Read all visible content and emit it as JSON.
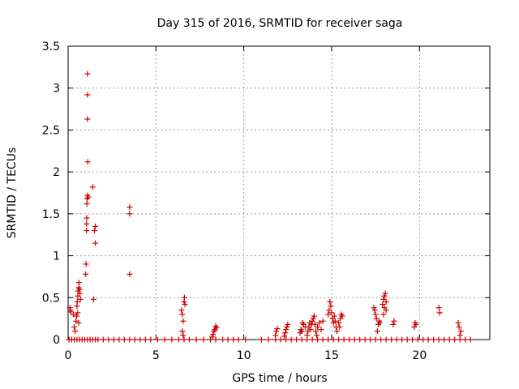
{
  "chart_data": {
    "type": "scatter",
    "title": "Day 315 of 2016, SRMTID for receiver saga",
    "xlabel": "GPS time / hours",
    "ylabel": "SRMTID / TECUs",
    "xlim": [
      0,
      24
    ],
    "ylim": [
      0,
      3.5
    ],
    "xticks": [
      0,
      5,
      10,
      15,
      20
    ],
    "yticks": [
      0,
      0.5,
      1,
      1.5,
      2,
      2.5,
      3,
      3.5
    ],
    "xtick_labels": [
      "0",
      "5",
      "10",
      "15",
      "20"
    ],
    "ytick_labels": [
      "0",
      "0.5",
      "1",
      "1.5",
      "2",
      "2.5",
      "3",
      "3.5"
    ],
    "grid": true,
    "marker": "+",
    "color": "#cc0000",
    "series": [
      {
        "name": "saga",
        "points": [
          [
            0.1,
            0.38
          ],
          [
            0.12,
            0.35
          ],
          [
            0.15,
            0.33
          ],
          [
            0.3,
            0.3
          ],
          [
            0.35,
            0.15
          ],
          [
            0.4,
            0.1
          ],
          [
            0.45,
            0.22
          ],
          [
            0.48,
            0.28
          ],
          [
            0.5,
            0.4
          ],
          [
            0.52,
            0.45
          ],
          [
            0.55,
            0.52
          ],
          [
            0.57,
            0.58
          ],
          [
            0.6,
            0.62
          ],
          [
            0.62,
            0.68
          ],
          [
            0.65,
            0.6
          ],
          [
            0.67,
            0.55
          ],
          [
            0.7,
            0.48
          ],
          [
            0.6,
            0.2
          ],
          [
            0.55,
            0.32
          ],
          [
            1.0,
            0.78
          ],
          [
            1.02,
            0.9
          ],
          [
            1.05,
            1.3
          ],
          [
            1.05,
            1.38
          ],
          [
            1.06,
            1.45
          ],
          [
            1.07,
            1.62
          ],
          [
            1.08,
            1.68
          ],
          [
            1.1,
            1.72
          ],
          [
            1.12,
            2.12
          ],
          [
            1.1,
            2.63
          ],
          [
            1.1,
            2.92
          ],
          [
            1.1,
            3.17
          ],
          [
            1.15,
            1.7
          ],
          [
            1.4,
            1.82
          ],
          [
            1.45,
            0.48
          ],
          [
            1.5,
            1.3
          ],
          [
            1.55,
            1.35
          ],
          [
            1.55,
            1.15
          ],
          [
            3.5,
            1.58
          ],
          [
            3.5,
            1.5
          ],
          [
            3.5,
            0.78
          ],
          [
            6.45,
            0.35
          ],
          [
            6.5,
            0.3
          ],
          [
            6.55,
            0.22
          ],
          [
            6.6,
            0.45
          ],
          [
            6.62,
            0.5
          ],
          [
            6.65,
            0.42
          ],
          [
            6.5,
            0.1
          ],
          [
            6.55,
            0.05
          ],
          [
            8.2,
            0.03
          ],
          [
            8.25,
            0.06
          ],
          [
            8.3,
            0.1
          ],
          [
            8.35,
            0.12
          ],
          [
            8.4,
            0.16
          ],
          [
            8.45,
            0.14
          ],
          [
            11.8,
            0.05
          ],
          [
            11.85,
            0.1
          ],
          [
            11.9,
            0.13
          ],
          [
            12.3,
            0.04
          ],
          [
            12.35,
            0.08
          ],
          [
            12.4,
            0.12
          ],
          [
            12.45,
            0.15
          ],
          [
            12.5,
            0.18
          ],
          [
            13.2,
            0.08
          ],
          [
            13.25,
            0.12
          ],
          [
            13.3,
            0.1
          ],
          [
            13.35,
            0.2
          ],
          [
            13.4,
            0.18
          ],
          [
            13.5,
            0.15
          ],
          [
            13.6,
            0.05
          ],
          [
            13.65,
            0.1
          ],
          [
            13.7,
            0.15
          ],
          [
            13.75,
            0.2
          ],
          [
            13.8,
            0.12
          ],
          [
            13.85,
            0.18
          ],
          [
            13.9,
            0.22
          ],
          [
            13.95,
            0.25
          ],
          [
            14.0,
            0.28
          ],
          [
            14.05,
            0.18
          ],
          [
            14.1,
            0.1
          ],
          [
            14.15,
            0.05
          ],
          [
            14.2,
            0.15
          ],
          [
            14.3,
            0.2
          ],
          [
            14.4,
            0.12
          ],
          [
            14.5,
            0.22
          ],
          [
            14.8,
            0.3
          ],
          [
            14.85,
            0.35
          ],
          [
            14.9,
            0.45
          ],
          [
            14.95,
            0.4
          ],
          [
            15.0,
            0.32
          ],
          [
            15.05,
            0.25
          ],
          [
            15.1,
            0.2
          ],
          [
            15.15,
            0.28
          ],
          [
            15.2,
            0.22
          ],
          [
            15.25,
            0.15
          ],
          [
            15.3,
            0.1
          ],
          [
            15.4,
            0.2
          ],
          [
            15.5,
            0.25
          ],
          [
            15.55,
            0.3
          ],
          [
            15.6,
            0.28
          ],
          [
            15.45,
            0.15
          ],
          [
            17.4,
            0.38
          ],
          [
            17.45,
            0.35
          ],
          [
            17.5,
            0.3
          ],
          [
            17.55,
            0.25
          ],
          [
            17.6,
            0.1
          ],
          [
            17.65,
            0.18
          ],
          [
            17.7,
            0.22
          ],
          [
            17.75,
            0.2
          ],
          [
            17.9,
            0.42
          ],
          [
            17.95,
            0.48
          ],
          [
            18.0,
            0.52
          ],
          [
            18.05,
            0.55
          ],
          [
            18.1,
            0.45
          ],
          [
            18.0,
            0.38
          ],
          [
            18.1,
            0.35
          ],
          [
            17.95,
            0.3
          ],
          [
            18.5,
            0.18
          ],
          [
            18.55,
            0.22
          ],
          [
            19.7,
            0.15
          ],
          [
            19.75,
            0.2
          ],
          [
            19.8,
            0.18
          ],
          [
            21.1,
            0.38
          ],
          [
            21.15,
            0.32
          ],
          [
            22.2,
            0.2
          ],
          [
            22.25,
            0.15
          ],
          [
            22.3,
            0.05
          ],
          [
            22.35,
            0.1
          ],
          [
            0.05,
            0
          ],
          [
            0.2,
            0
          ],
          [
            0.35,
            0
          ],
          [
            0.5,
            0
          ],
          [
            0.65,
            0
          ],
          [
            0.8,
            0
          ],
          [
            0.95,
            0
          ],
          [
            1.1,
            0
          ],
          [
            1.25,
            0
          ],
          [
            1.4,
            0
          ],
          [
            1.55,
            0
          ],
          [
            1.7,
            0
          ],
          [
            2.0,
            0
          ],
          [
            2.3,
            0
          ],
          [
            2.6,
            0
          ],
          [
            2.9,
            0
          ],
          [
            3.2,
            0
          ],
          [
            3.5,
            0
          ],
          [
            3.8,
            0
          ],
          [
            4.1,
            0
          ],
          [
            4.4,
            0
          ],
          [
            4.7,
            0
          ],
          [
            5.1,
            0
          ],
          [
            5.5,
            0
          ],
          [
            5.9,
            0
          ],
          [
            6.3,
            0
          ],
          [
            6.6,
            0
          ],
          [
            6.9,
            0
          ],
          [
            7.3,
            0
          ],
          [
            7.7,
            0
          ],
          [
            8.1,
            0
          ],
          [
            8.4,
            0
          ],
          [
            8.8,
            0
          ],
          [
            9.1,
            0
          ],
          [
            9.4,
            0
          ],
          [
            9.7,
            0
          ],
          [
            10.1,
            0
          ],
          [
            11.0,
            0
          ],
          [
            11.4,
            0
          ],
          [
            11.8,
            0
          ],
          [
            12.1,
            0
          ],
          [
            12.4,
            0
          ],
          [
            12.7,
            0
          ],
          [
            13.0,
            0
          ],
          [
            13.3,
            0
          ],
          [
            13.6,
            0
          ],
          [
            13.9,
            0
          ],
          [
            14.2,
            0
          ],
          [
            14.5,
            0
          ],
          [
            14.8,
            0
          ],
          [
            15.1,
            0
          ],
          [
            15.4,
            0
          ],
          [
            15.7,
            0
          ],
          [
            16.0,
            0
          ],
          [
            16.3,
            0
          ],
          [
            16.6,
            0
          ],
          [
            16.9,
            0
          ],
          [
            17.2,
            0
          ],
          [
            17.5,
            0
          ],
          [
            17.8,
            0
          ],
          [
            18.1,
            0
          ],
          [
            18.4,
            0
          ],
          [
            18.7,
            0
          ],
          [
            19.0,
            0
          ],
          [
            19.3,
            0
          ],
          [
            19.6,
            0
          ],
          [
            19.9,
            0
          ],
          [
            20.2,
            0
          ],
          [
            20.5,
            0
          ],
          [
            20.8,
            0
          ],
          [
            21.1,
            0
          ],
          [
            21.4,
            0
          ],
          [
            21.7,
            0
          ],
          [
            22.0,
            0
          ],
          [
            22.3,
            0
          ],
          [
            22.6,
            0
          ],
          [
            22.9,
            0
          ]
        ]
      }
    ]
  }
}
